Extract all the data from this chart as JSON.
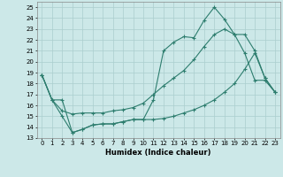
{
  "xlabel": "Humidex (Indice chaleur)",
  "xlim": [
    -0.5,
    23.5
  ],
  "ylim": [
    13,
    25.5
  ],
  "xticks": [
    0,
    1,
    2,
    3,
    4,
    5,
    6,
    7,
    8,
    9,
    10,
    11,
    12,
    13,
    14,
    15,
    16,
    17,
    18,
    19,
    20,
    21,
    22,
    23
  ],
  "yticks": [
    13,
    14,
    15,
    16,
    17,
    18,
    19,
    20,
    21,
    22,
    23,
    24,
    25
  ],
  "bg_color": "#cce8e8",
  "line_color": "#2d7d6e",
  "grid_color": "#aacece",
  "series1_x": [
    0,
    1,
    2,
    3,
    4,
    5,
    6,
    7,
    8,
    9,
    10,
    11,
    12,
    13,
    14,
    15,
    16,
    17,
    18,
    19,
    20,
    21,
    22,
    23
  ],
  "series1_y": [
    18.8,
    16.5,
    16.5,
    13.5,
    13.8,
    14.2,
    14.3,
    14.3,
    14.5,
    14.7,
    14.7,
    16.5,
    21.0,
    21.8,
    22.3,
    22.2,
    23.8,
    25.0,
    23.9,
    22.5,
    20.8,
    18.3,
    18.3,
    17.2
  ],
  "series2_x": [
    0,
    1,
    2,
    3,
    4,
    5,
    6,
    7,
    8,
    9,
    10,
    11,
    12,
    13,
    14,
    15,
    16,
    17,
    18,
    19,
    20,
    21,
    22,
    23
  ],
  "series2_y": [
    18.8,
    16.5,
    15.5,
    15.2,
    15.3,
    15.3,
    15.3,
    15.5,
    15.6,
    15.8,
    16.2,
    17.0,
    17.8,
    18.5,
    19.2,
    20.2,
    21.4,
    22.5,
    23.0,
    22.5,
    22.5,
    21.0,
    18.5,
    17.2
  ],
  "series3_x": [
    0,
    1,
    2,
    3,
    4,
    5,
    6,
    7,
    8,
    9,
    10,
    11,
    12,
    13,
    14,
    15,
    16,
    17,
    18,
    19,
    20,
    21,
    22,
    23
  ],
  "series3_y": [
    18.8,
    16.5,
    15.0,
    13.5,
    13.8,
    14.2,
    14.3,
    14.3,
    14.5,
    14.7,
    14.7,
    14.7,
    14.8,
    15.0,
    15.3,
    15.6,
    16.0,
    16.5,
    17.2,
    18.0,
    19.3,
    20.8,
    18.5,
    17.2
  ]
}
